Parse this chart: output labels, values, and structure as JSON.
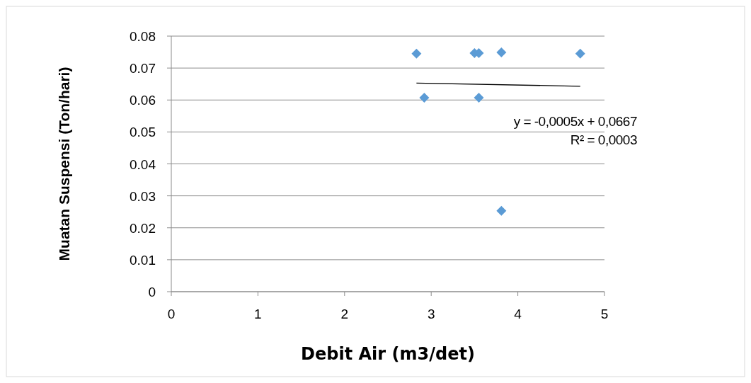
{
  "chart_data": {
    "type": "scatter",
    "xlabel": "Debit Air (m3/det)",
    "ylabel": "Muatan Suspensi (Ton/hari)",
    "xlim": [
      0,
      5
    ],
    "xticks": [
      0,
      1,
      2,
      3,
      4,
      5
    ],
    "ylim": [
      0,
      0.08
    ],
    "yticks": [
      {
        "value": 0,
        "label": "0"
      },
      {
        "value": 0.01,
        "label": "0.01"
      },
      {
        "value": 0.02,
        "label": "0.02"
      },
      {
        "value": 0.03,
        "label": "0.03"
      },
      {
        "value": 0.04,
        "label": "0.04"
      },
      {
        "value": 0.05,
        "label": "0.05"
      },
      {
        "value": 0.06,
        "label": "0.06"
      },
      {
        "value": 0.07,
        "label": "0.07"
      },
      {
        "value": 0.08,
        "label": "0.08"
      }
    ],
    "grid": "y",
    "series": [
      {
        "marker": "diamond",
        "color": "#5b9bd5",
        "x": [
          2.83,
          2.92,
          3.5,
          3.55,
          3.55,
          3.81,
          3.81,
          4.72
        ],
        "values": [
          0.0745,
          0.0607,
          0.0747,
          0.0747,
          0.0607,
          0.0749,
          0.0253,
          0.0745
        ]
      },
      {
        "type": "line",
        "color": "#000000",
        "x": [
          2.83,
          4.72
        ],
        "values": [
          0.0653,
          0.0643
        ]
      }
    ],
    "annotations": [
      "y = -0,0005x + 0,0667",
      "R² = 0,0003"
    ]
  }
}
